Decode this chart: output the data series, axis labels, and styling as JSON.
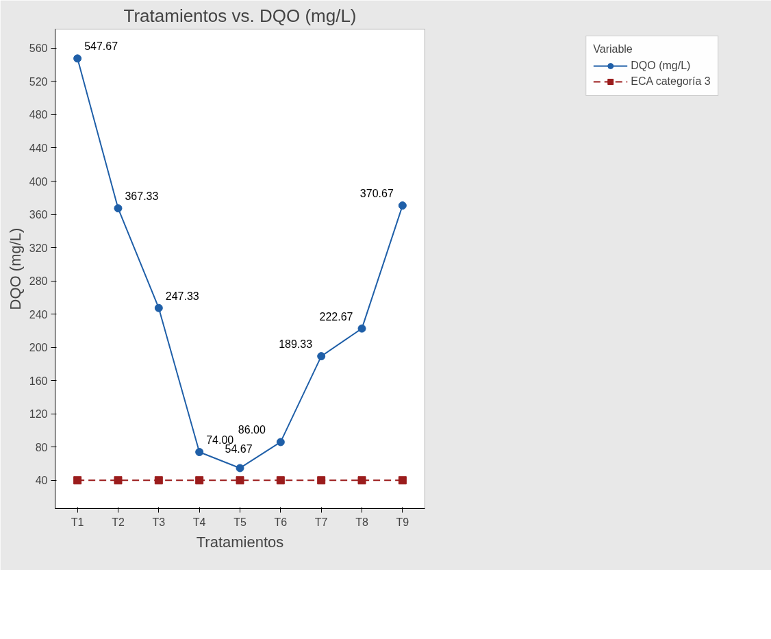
{
  "chart_data": {
    "type": "line",
    "title": "Tratamientos vs. DQO (mg/L)",
    "xlabel": "Tratamientos",
    "ylabel": "DQO (mg/L)",
    "legend_title": "Variable",
    "categories": [
      "T1",
      "T2",
      "T3",
      "T4",
      "T5",
      "T6",
      "T7",
      "T8",
      "T9"
    ],
    "series": [
      {
        "name": "DQO (mg/L)",
        "color": "#1f5fa8",
        "marker": "circle",
        "line_style": "solid",
        "values": [
          547.67,
          367.33,
          247.33,
          74.0,
          54.67,
          86.0,
          189.33,
          222.67,
          370.67
        ],
        "value_labels": [
          "547.67",
          "367.33",
          "247.33",
          "74.00",
          "54.67",
          "86.00",
          "189.33",
          "222.67",
          "370.67"
        ]
      },
      {
        "name": "ECA categoría 3",
        "color": "#9b1c1c",
        "marker": "square",
        "line_style": "dashed",
        "values": [
          40,
          40,
          40,
          40,
          40,
          40,
          40,
          40,
          40
        ]
      }
    ],
    "ylim": [
      6,
      583
    ],
    "yticks": [
      40,
      80,
      120,
      160,
      200,
      240,
      280,
      320,
      360,
      400,
      440,
      480,
      520,
      560
    ],
    "grid": false,
    "legend": "right"
  }
}
